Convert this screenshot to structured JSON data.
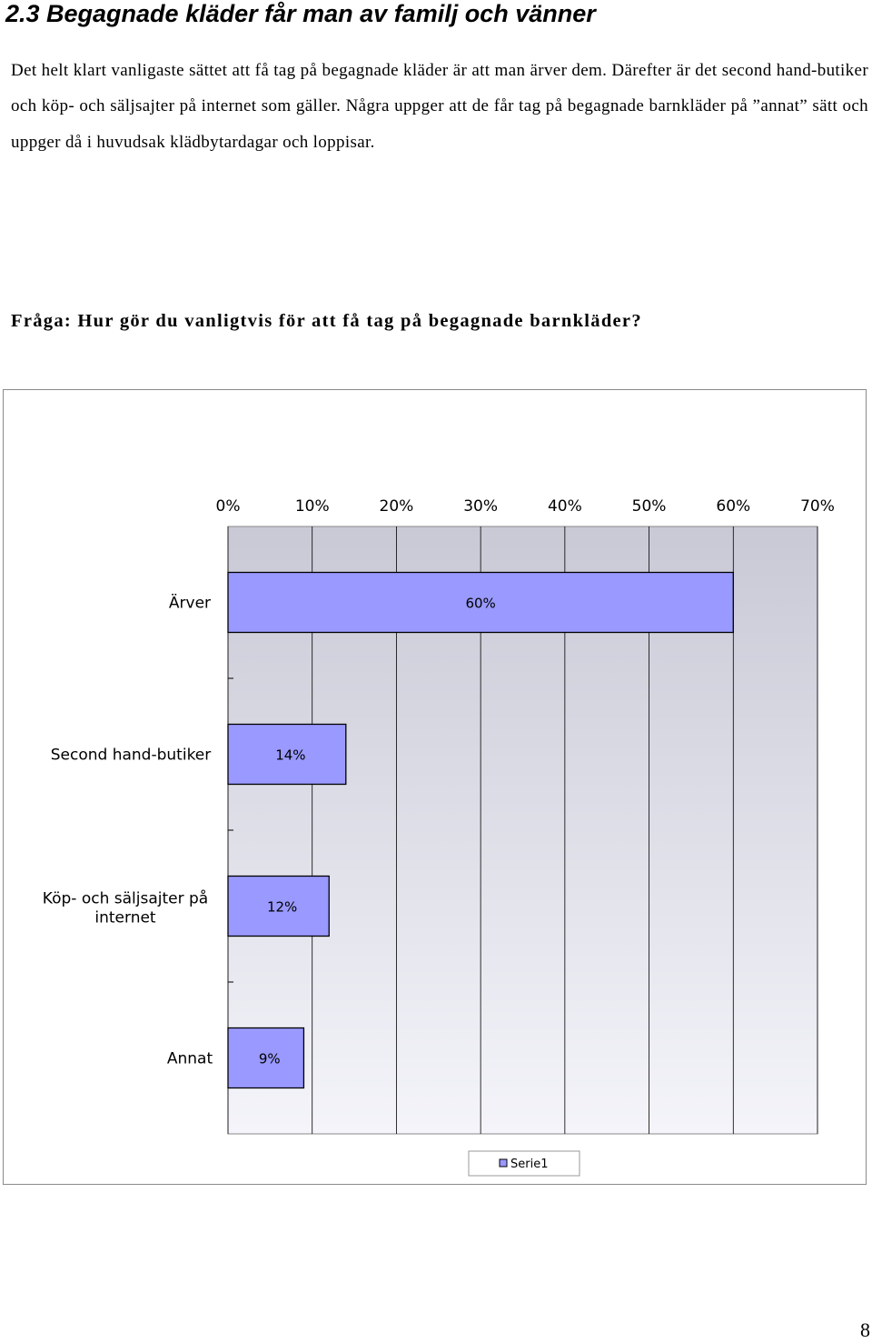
{
  "document": {
    "heading": "2.3  Begagnade kläder får man av familj och vänner",
    "paragraph": "Det helt klart vanligaste sättet att få tag på begagnade kläder är att man ärver dem. Därefter är det second hand-butiker och köp- och säljsajter på internet som gäller. Några uppger att de får tag på begagnade barnkläder på ”annat” sätt och uppger då i huvudsak klädbytardagar och loppisar.",
    "question": "Fråga: Hur gör du vanligtvis för att få tag på begagnade barnkläder?",
    "page_number": "8"
  },
  "colors": {
    "bar_fill": "#9999ff",
    "bar_stroke": "#000000",
    "plot_bg_top": "#c9c9d6",
    "plot_bg_bottom": "#f4f4fa",
    "grid": "#000000"
  },
  "chart_data": {
    "type": "bar",
    "orientation": "horizontal",
    "categories": [
      "Ärver",
      "Second hand-butiker",
      "Köp- och säljsajter på internet",
      "Annat"
    ],
    "series": [
      {
        "name": "Serie1",
        "values": [
          60,
          14,
          12,
          9
        ]
      }
    ],
    "data_labels": [
      "60%",
      "14%",
      "12%",
      "9%"
    ],
    "xlim": [
      0,
      70
    ],
    "x_ticks": [
      "0%",
      "10%",
      "20%",
      "30%",
      "40%",
      "50%",
      "60%",
      "70%"
    ],
    "x_axis_position": "top",
    "grid": true,
    "legend": "bottom-center",
    "title": "",
    "xlabel": "",
    "ylabel": ""
  }
}
